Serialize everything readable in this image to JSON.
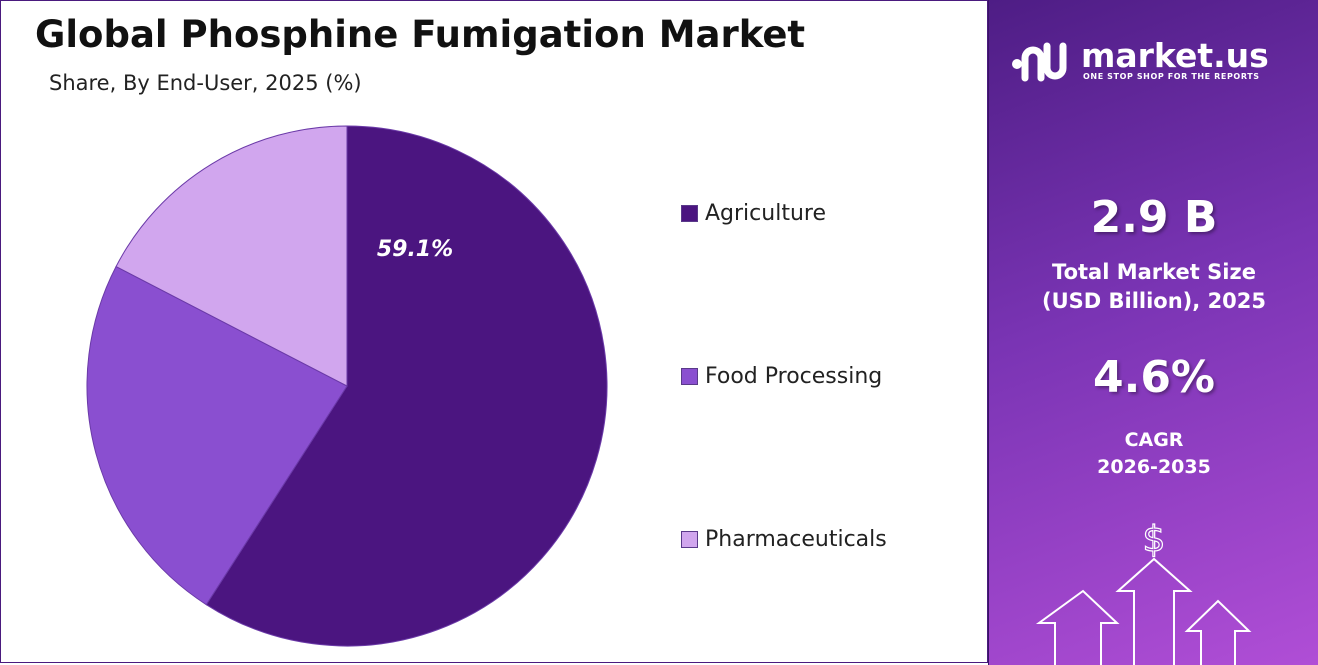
{
  "header": {
    "title": "Global Phosphine Fumigation Market",
    "subtitle": "Share, By End-User, 2025 (%)"
  },
  "chart_data": {
    "type": "pie",
    "title": "Global Phosphine Fumigation Market",
    "subtitle": "Share, By End-User, 2025 (%)",
    "categories": [
      "Agriculture",
      "Food Processing",
      "Pharmaceuticals"
    ],
    "values": [
      59.1,
      23.5,
      17.4
    ],
    "colors": [
      "#4b1580",
      "#8a4fd0",
      "#d1a6ee"
    ],
    "data_labels": [
      "59.1%",
      "",
      ""
    ],
    "legend_position": "right",
    "start_angle": "12 o'clock, clockwise"
  },
  "legend": {
    "items": [
      {
        "label": "Agriculture",
        "color": "#4b1580"
      },
      {
        "label": "Food Processing",
        "color": "#8a4fd0"
      },
      {
        "label": "Pharmaceuticals",
        "color": "#d1a6ee"
      }
    ]
  },
  "brand": {
    "name": "market.us",
    "tagline": "ONE STOP SHOP FOR THE REPORTS",
    "icon": "market-us-logo-icon"
  },
  "stats": {
    "market_size_value": "2.9 B",
    "market_size_label_line1": "Total Market Size",
    "market_size_label_line2": "(USD Billion), 2025",
    "cagr_value": "4.6%",
    "cagr_label_line1": "CAGR",
    "cagr_label_line2": "2026-2035"
  },
  "decor": {
    "currency_symbol": "$",
    "arrow_icon": "growth-arrows-icon"
  }
}
